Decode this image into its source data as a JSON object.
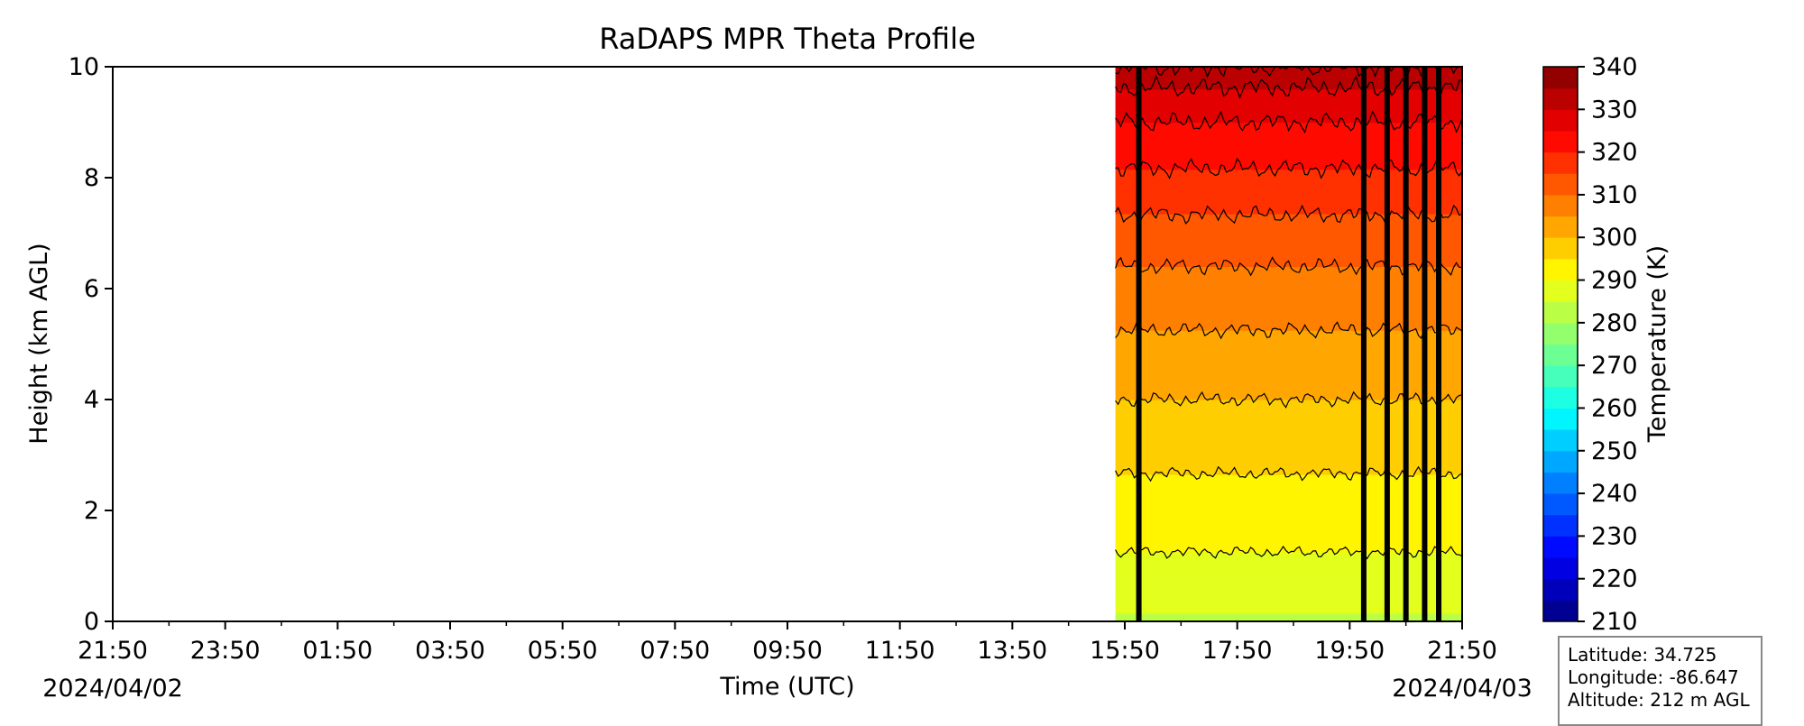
{
  "chart_data": {
    "type": "heatmap",
    "title": "RaDAPS MPR Theta Profile",
    "xlabel": "Time (UTC)",
    "ylabel": "Height (km AGL)",
    "x_ticks": [
      "21:50",
      "23:50",
      "01:50",
      "03:50",
      "05:50",
      "07:50",
      "09:50",
      "11:50",
      "13:50",
      "15:50",
      "17:50",
      "19:50",
      "21:50"
    ],
    "x_start_date": "2024/04/02",
    "x_end_date": "2024/04/03",
    "ylim": [
      0,
      10
    ],
    "y_ticks": [
      0,
      2,
      4,
      6,
      8,
      10
    ],
    "data_start": "15:40",
    "data_end": "21:50",
    "missing_time_slots": [
      "16:05",
      "20:05",
      "20:30",
      "20:50",
      "21:10",
      "21:25"
    ],
    "theta_profile": [
      {
        "height_km": 0,
        "theta_K": 284
      },
      {
        "height_km": 0.5,
        "theta_K": 287
      },
      {
        "height_km": 1,
        "theta_K": 289
      },
      {
        "height_km": 2,
        "theta_K": 293
      },
      {
        "height_km": 3,
        "theta_K": 296
      },
      {
        "height_km": 4,
        "theta_K": 300
      },
      {
        "height_km": 5,
        "theta_K": 304
      },
      {
        "height_km": 6,
        "theta_K": 308
      },
      {
        "height_km": 7,
        "theta_K": 313
      },
      {
        "height_km": 8,
        "theta_K": 319
      },
      {
        "height_km": 9,
        "theta_K": 325
      },
      {
        "height_km": 10,
        "theta_K": 333
      }
    ],
    "contour_levels_K": [
      290,
      295,
      300,
      305,
      310,
      315,
      320,
      325,
      330,
      335
    ],
    "colorbar": {
      "label": "Temperature (K)",
      "min": 210,
      "max": 340,
      "step": 5,
      "ticks": [
        210,
        220,
        230,
        240,
        250,
        260,
        270,
        280,
        290,
        300,
        310,
        320,
        330,
        340
      ],
      "colormap": "jet"
    },
    "grid": false
  },
  "info_box": {
    "latitude": "Latitude: 34.725",
    "longitude": "Longitude: -86.647",
    "altitude": "Altitude: 212 m AGL"
  }
}
